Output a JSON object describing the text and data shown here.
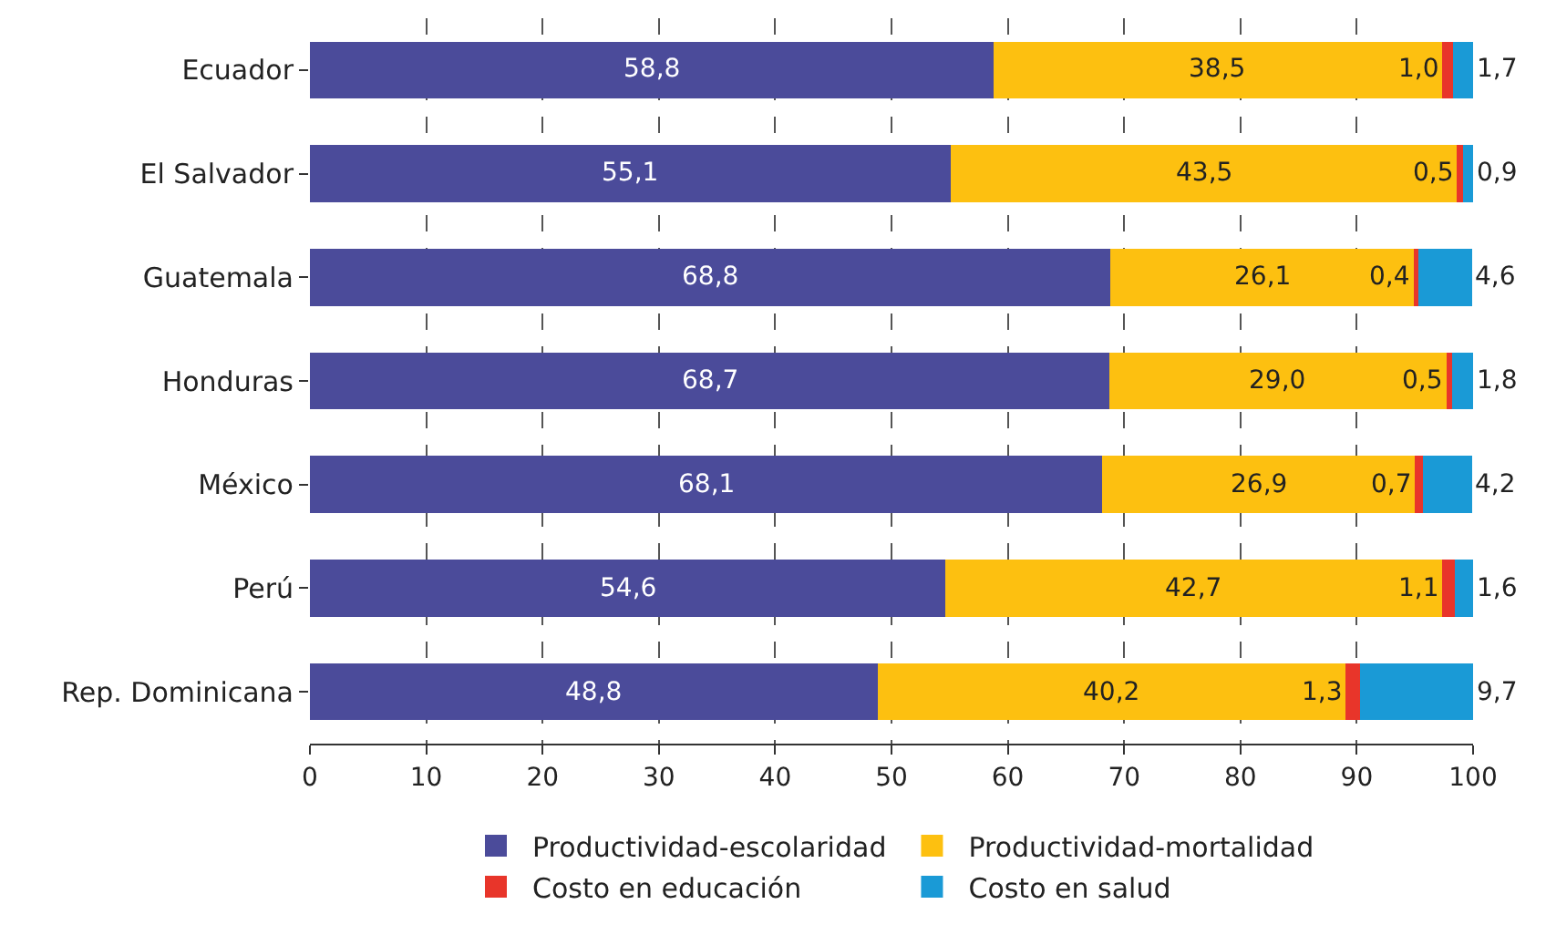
{
  "chart_data": {
    "type": "bar",
    "orientation": "horizontal",
    "stacked": true,
    "categories": [
      "Ecuador",
      "El Salvador",
      "Guatemala",
      "Honduras",
      "México",
      "Perú",
      "Rep. Dominicana"
    ],
    "series": [
      {
        "name": "Productividad-escolaridad",
        "color": "#4b4b9a",
        "values": [
          58.8,
          55.1,
          68.8,
          68.7,
          68.1,
          54.6,
          48.8
        ],
        "value_labels": [
          "58,8",
          "55,1",
          "68,8",
          "68,7",
          "68,1",
          "54,6",
          "48,8"
        ]
      },
      {
        "name": "Productividad-mortalidad",
        "color": "#fdc010",
        "values": [
          38.5,
          43.5,
          26.1,
          29.0,
          26.9,
          42.7,
          40.2
        ],
        "value_labels": [
          "38,5",
          "43,5",
          "26,1",
          "29,0",
          "26,9",
          "42,7",
          "40,2"
        ]
      },
      {
        "name": "Costo en educación",
        "color": "#e8352a",
        "values": [
          1.0,
          0.5,
          0.4,
          0.5,
          0.7,
          1.1,
          1.3
        ],
        "value_labels": [
          "1,0",
          "0,5",
          "0,4",
          "0,5",
          "0,7",
          "1,1",
          "1,3"
        ]
      },
      {
        "name": "Costo en salud",
        "color": "#1a9ad6",
        "values": [
          1.7,
          0.9,
          4.6,
          1.8,
          4.2,
          1.6,
          9.7
        ],
        "value_labels": [
          "1,7",
          "0,9",
          "4,6",
          "1,8",
          "4,2",
          "1,6",
          "9,7"
        ]
      }
    ],
    "xlim": [
      0,
      100
    ],
    "xticks": [
      0,
      10,
      20,
      30,
      40,
      50,
      60,
      70,
      80,
      90,
      100
    ],
    "grid": "x",
    "legend": "bottom"
  }
}
